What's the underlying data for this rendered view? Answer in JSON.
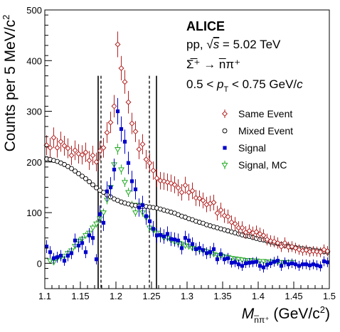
{
  "chart_data": {
    "type": "scatter",
    "xlabel_main": "M",
    "xlabel_sub": "n̅π⁺",
    "xlabel_unit": " (GeV/c",
    "xlabel_sup": "2",
    "xlabel_close": ")",
    "ylabel": "Counts per 5 MeV/c",
    "ylabel_sup": "2",
    "xlim": [
      1.1,
      1.5
    ],
    "ylim": [
      -50,
      500
    ],
    "xticks": [
      "1.1",
      "1.15",
      "1.2",
      "1.25",
      "1.3",
      "1.35",
      "1.4",
      "1.45",
      "1.5"
    ],
    "xtick_values": [
      1.1,
      1.15,
      1.2,
      1.25,
      1.3,
      1.35,
      1.4,
      1.45,
      1.5
    ],
    "yticks": [
      "0",
      "100",
      "200",
      "300",
      "400",
      "500"
    ],
    "ytick_values": [
      0,
      100,
      200,
      300,
      400,
      500
    ],
    "annotations": {
      "experiment": "ALICE",
      "system_pre": "pp, ",
      "sqrt": "√",
      "s_symbol": "s",
      "energy": " = 5.02 TeV",
      "decay": "Σ̅⁺ → n̅π⁺",
      "pt_range_a": "0.5 < ",
      "pt_p": "p",
      "pt_sub": "T",
      "pt_range_b": " < 0.75 GeV/",
      "pt_c": "c"
    },
    "vlines": [
      {
        "x": 1.175,
        "style": "solid"
      },
      {
        "x": 1.179,
        "style": "dashed"
      },
      {
        "x": 1.247,
        "style": "dashed"
      },
      {
        "x": 1.257,
        "style": "solid"
      }
    ],
    "legend_position": "right",
    "series": [
      {
        "name": "Same Event",
        "marker": "diamond-open",
        "color": "#b22222",
        "x": [
          1.1025,
          1.1075,
          1.1125,
          1.1175,
          1.1225,
          1.1275,
          1.1325,
          1.1375,
          1.1425,
          1.1475,
          1.1525,
          1.1575,
          1.1625,
          1.1675,
          1.1725,
          1.1775,
          1.1825,
          1.1875,
          1.1925,
          1.1975,
          1.2025,
          1.2075,
          1.2125,
          1.2175,
          1.2225,
          1.2275,
          1.2325,
          1.2375,
          1.2425,
          1.2475,
          1.2525,
          1.2575,
          1.2625,
          1.2675,
          1.2725,
          1.2775,
          1.2825,
          1.2875,
          1.2925,
          1.2975,
          1.3025,
          1.3075,
          1.3125,
          1.3175,
          1.3225,
          1.3275,
          1.3325,
          1.3375,
          1.3425,
          1.3475,
          1.3525,
          1.3575,
          1.3625,
          1.3675,
          1.3725,
          1.3775,
          1.3825,
          1.3875,
          1.3925,
          1.3975,
          1.4025,
          1.4075,
          1.4125,
          1.4175,
          1.4225,
          1.4275,
          1.4325,
          1.4375,
          1.4425,
          1.4475,
          1.4525,
          1.4575,
          1.4625,
          1.4675,
          1.4725,
          1.4775,
          1.4825,
          1.4875,
          1.4925,
          1.4975
        ],
        "y": [
          233,
          228,
          248,
          228,
          240,
          232,
          227,
          213,
          223,
          216,
          214,
          219,
          203,
          213,
          200,
          222,
          228,
          258,
          278,
          310,
          432,
          385,
          358,
          318,
          276,
          260,
          225,
          235,
          205,
          198,
          183,
          168,
          163,
          162,
          160,
          158,
          155,
          149,
          140,
          154,
          140,
          143,
          129,
          128,
          124,
          116,
          118,
          120,
          99,
          105,
          94,
          92,
          81,
          78,
          70,
          70,
          61,
          64,
          60,
          62,
          58,
          55,
          47,
          44,
          43,
          40,
          33,
          40,
          32,
          33,
          30,
          27,
          25,
          26,
          23,
          24,
          23,
          22,
          27,
          24
        ]
      },
      {
        "name": "Mixed Event",
        "marker": "circle-open",
        "color": "#000000",
        "x": [
          1.1025,
          1.1075,
          1.1125,
          1.1175,
          1.1225,
          1.1275,
          1.1325,
          1.1375,
          1.1425,
          1.1475,
          1.1525,
          1.1575,
          1.1625,
          1.1675,
          1.1725,
          1.1775,
          1.1825,
          1.1875,
          1.1925,
          1.1975,
          1.2025,
          1.2075,
          1.2125,
          1.2175,
          1.2225,
          1.2275,
          1.2325,
          1.2375,
          1.2425,
          1.2475,
          1.2525,
          1.2575,
          1.2625,
          1.2675,
          1.2725,
          1.2775,
          1.2825,
          1.2875,
          1.2925,
          1.2975,
          1.3025,
          1.3075,
          1.3125,
          1.3175,
          1.3225,
          1.3275,
          1.3325,
          1.3375,
          1.3425,
          1.3475,
          1.3525,
          1.3575,
          1.3625,
          1.3675,
          1.3725,
          1.3775,
          1.3825,
          1.3875,
          1.3925,
          1.3975,
          1.4025,
          1.4075,
          1.4125,
          1.4175,
          1.4225,
          1.4275,
          1.4325,
          1.4375,
          1.4425,
          1.4475,
          1.4525,
          1.4575,
          1.4625,
          1.4675,
          1.4725,
          1.4775,
          1.4825,
          1.4875,
          1.4925,
          1.4975
        ],
        "y": [
          206,
          205,
          203,
          201,
          198,
          195,
          191,
          187,
          182,
          177,
          172,
          167,
          161,
          155,
          149,
          144,
          140,
          135,
          131,
          127,
          124,
          121,
          119,
          117,
          115,
          114,
          113,
          112,
          112,
          111,
          110,
          109,
          107,
          105,
          103,
          101,
          99,
          96,
          93,
          91,
          88,
          86,
          83,
          81,
          79,
          76,
          74,
          72,
          70,
          68,
          66,
          64,
          62,
          60,
          58,
          56,
          54,
          53,
          51,
          49,
          47,
          46,
          44,
          42,
          40,
          39,
          37,
          35,
          34,
          32,
          31,
          30,
          29,
          28,
          27,
          26,
          25,
          24,
          23,
          22
        ]
      },
      {
        "name": "Signal",
        "marker": "square-filled",
        "color": "#0000cc",
        "x": [
          1.1025,
          1.1075,
          1.1125,
          1.1175,
          1.1225,
          1.1275,
          1.1325,
          1.1375,
          1.1425,
          1.1475,
          1.1525,
          1.1575,
          1.1625,
          1.1675,
          1.1725,
          1.1775,
          1.1825,
          1.1875,
          1.1925,
          1.1975,
          1.2025,
          1.2075,
          1.2125,
          1.2175,
          1.2225,
          1.2275,
          1.2325,
          1.2375,
          1.2425,
          1.2475,
          1.2525,
          1.2575,
          1.2625,
          1.2675,
          1.2725,
          1.2775,
          1.2825,
          1.2875,
          1.2925,
          1.2975,
          1.3025,
          1.3075,
          1.3125,
          1.3175,
          1.3225,
          1.3275,
          1.3325,
          1.3375,
          1.3425,
          1.3475,
          1.3525,
          1.3575,
          1.3625,
          1.3675,
          1.3725,
          1.3775,
          1.3825,
          1.3875,
          1.3925,
          1.3975,
          1.4025,
          1.4075,
          1.4125,
          1.4175,
          1.4225,
          1.4275,
          1.4325,
          1.4375,
          1.4425,
          1.4475,
          1.4525,
          1.4575,
          1.4625,
          1.4675,
          1.4725,
          1.4775,
          1.4825,
          1.4875,
          1.4925,
          1.4975
        ],
        "y": [
          33,
          22,
          10,
          12,
          15,
          5,
          15,
          20,
          45,
          35,
          40,
          22,
          55,
          50,
          8,
          97,
          80,
          142,
          150,
          185,
          300,
          265,
          240,
          198,
          162,
          146,
          110,
          115,
          93,
          83,
          68,
          55,
          56,
          53,
          58,
          48,
          47,
          45,
          30,
          50,
          45,
          38,
          28,
          30,
          26,
          20,
          22,
          28,
          8,
          18,
          8,
          10,
          1,
          2,
          -2,
          -5,
          0,
          1,
          2,
          3,
          -5,
          -8,
          -3,
          0,
          3,
          5,
          -5,
          2,
          -2,
          0,
          -2,
          -5,
          -2,
          -2,
          -4,
          -2,
          -4,
          -6,
          4,
          2
        ]
      },
      {
        "name": "Signal, MC",
        "marker": "triangle-down-open",
        "color": "#22aa22",
        "x": [
          1.1075,
          1.1125,
          1.1175,
          1.1225,
          1.1275,
          1.1325,
          1.1375,
          1.1425,
          1.1475,
          1.1525,
          1.1575,
          1.1625,
          1.1675,
          1.1725,
          1.1775,
          1.1825,
          1.1875,
          1.1925,
          1.1975,
          1.2025,
          1.2075,
          1.2125,
          1.2175,
          1.2225,
          1.2275,
          1.2325,
          1.2375,
          1.2425,
          1.2475,
          1.2525,
          1.2575,
          1.2625,
          1.2675,
          1.2725,
          1.2775,
          1.2825,
          1.2875,
          1.2925,
          1.2975,
          1.3025,
          1.3075,
          1.3125,
          1.3175,
          1.3225,
          1.3275,
          1.3325,
          1.3375,
          1.3425,
          1.3475,
          1.3525,
          1.3575,
          1.3625,
          1.3675,
          1.3725,
          1.3775,
          1.3825,
          1.3875,
          1.3925,
          1.3975,
          1.4025,
          1.4075,
          1.4125,
          1.4175,
          1.4225,
          1.4275,
          1.4325,
          1.4375,
          1.4425,
          1.4475
        ],
        "y": [
          5,
          2,
          10,
          12,
          14,
          20,
          25,
          34,
          44,
          48,
          55,
          60,
          70,
          78,
          88,
          100,
          125,
          150,
          195,
          225,
          185,
          160,
          140,
          115,
          100,
          115,
          100,
          90,
          70,
          65,
          60,
          55,
          50,
          50,
          45,
          42,
          40,
          38,
          35,
          33,
          30,
          28,
          26,
          25,
          23,
          20,
          18,
          16,
          15,
          13,
          12,
          10,
          9,
          8,
          7,
          6,
          6,
          5,
          5,
          4,
          4,
          3,
          3,
          3,
          2,
          2,
          2,
          2,
          2
        ]
      }
    ]
  }
}
